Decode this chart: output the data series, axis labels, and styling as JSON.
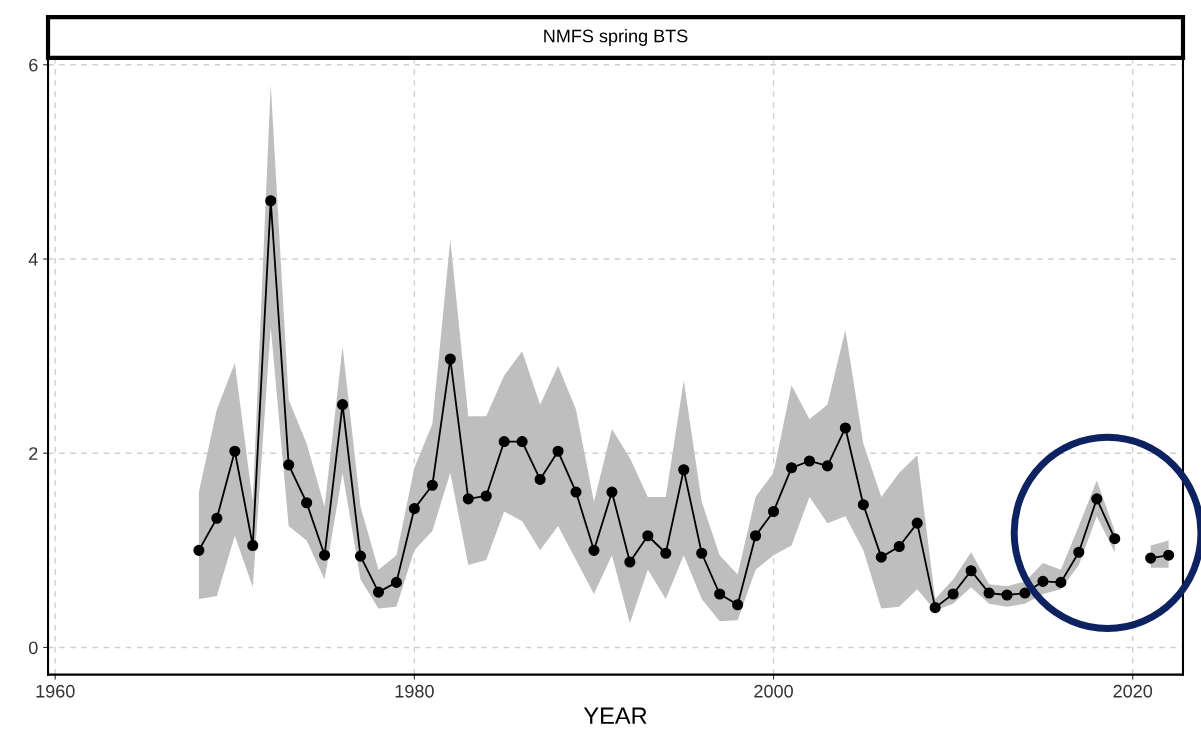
{
  "chart_data": {
    "type": "line",
    "title": "NMFS spring BTS",
    "xlabel": "YEAR",
    "x": [
      1968,
      1969,
      1970,
      1971,
      1972,
      1973,
      1974,
      1975,
      1976,
      1977,
      1978,
      1979,
      1980,
      1981,
      1982,
      1983,
      1984,
      1985,
      1986,
      1987,
      1988,
      1989,
      1990,
      1991,
      1992,
      1993,
      1994,
      1995,
      1996,
      1997,
      1998,
      1999,
      2000,
      2001,
      2002,
      2003,
      2004,
      2005,
      2006,
      2007,
      2008,
      2009,
      2010,
      2011,
      2012,
      2013,
      2014,
      2015,
      2016,
      2017,
      2018,
      2019,
      2020,
      2021,
      2022
    ],
    "series": [
      {
        "color": "#000000",
        "values": [
          1.0,
          1.33,
          2.02,
          1.05,
          4.6,
          1.88,
          1.49,
          0.95,
          2.5,
          0.94,
          0.57,
          0.67,
          1.43,
          1.67,
          2.97,
          1.53,
          1.56,
          2.12,
          2.12,
          1.73,
          2.02,
          1.6,
          1.0,
          1.6,
          0.88,
          1.15,
          0.97,
          1.83,
          0.97,
          0.55,
          0.44,
          1.15,
          1.4,
          1.85,
          1.92,
          1.87,
          2.26,
          1.47,
          0.93,
          1.04,
          1.28,
          0.41,
          0.55,
          0.79,
          0.56,
          0.54,
          0.56,
          0.68,
          0.67,
          0.98,
          1.53,
          1.12,
          null,
          0.92,
          0.95
        ],
        "lower": [
          0.5,
          0.53,
          1.15,
          0.62,
          3.3,
          1.25,
          1.1,
          0.7,
          1.8,
          0.7,
          0.4,
          0.42,
          1.0,
          1.2,
          1.8,
          0.85,
          0.9,
          1.4,
          1.3,
          1.0,
          1.25,
          0.9,
          0.55,
          0.95,
          0.25,
          0.8,
          0.5,
          0.95,
          0.5,
          0.27,
          0.28,
          0.8,
          0.95,
          1.05,
          1.55,
          1.28,
          1.35,
          1.0,
          0.4,
          0.42,
          0.6,
          0.38,
          0.45,
          0.62,
          0.45,
          0.42,
          0.45,
          0.55,
          0.6,
          0.85,
          1.35,
          0.98,
          null,
          0.82,
          0.82
        ],
        "upper": [
          1.6,
          2.45,
          2.93,
          1.5,
          5.8,
          2.55,
          2.1,
          1.45,
          3.1,
          1.45,
          0.8,
          0.95,
          1.85,
          2.3,
          4.2,
          2.38,
          2.38,
          2.8,
          3.05,
          2.5,
          2.9,
          2.45,
          1.5,
          2.25,
          1.95,
          1.55,
          1.55,
          2.75,
          1.5,
          0.95,
          0.75,
          1.55,
          1.8,
          2.7,
          2.35,
          2.5,
          3.27,
          2.1,
          1.55,
          1.8,
          1.98,
          0.5,
          0.7,
          0.98,
          0.65,
          0.63,
          0.68,
          0.87,
          0.8,
          1.25,
          1.72,
          1.2,
          null,
          1.05,
          1.1
        ]
      }
    ],
    "xlim": [
      1959.6,
      2022.8
    ],
    "ylim": [
      -0.28,
      6.07
    ],
    "xticks": [
      1960,
      1980,
      2000,
      2020
    ],
    "yticks": [
      0,
      2,
      4,
      6
    ],
    "grid": true,
    "marker": "circle",
    "line_style": "solid"
  }
}
